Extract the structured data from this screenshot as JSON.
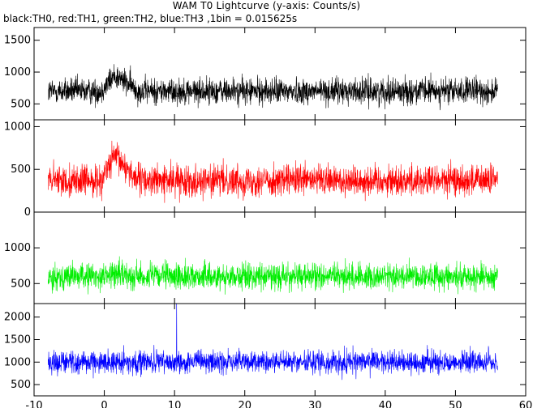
{
  "chart_data": {
    "type": "line",
    "title": "WAM T0 Lightcurve (y-axis: Counts/s)",
    "subtitle": "black:TH0, red:TH1, green:TH2, blue:TH3 ,1bin = 0.015625s",
    "xlim": [
      -10,
      60
    ],
    "x_ticks": [
      -10,
      0,
      10,
      20,
      30,
      40,
      50,
      60
    ],
    "data_range_x": [
      -8,
      56
    ],
    "bin_seconds": 0.015625,
    "panels": [
      {
        "series": "TH0",
        "color": "#000000",
        "ylim": [
          250,
          1700
        ],
        "y_ticks": [
          500,
          1000,
          1500
        ],
        "baseline": 700,
        "noise_amp": 260,
        "burst": {
          "start": -0.5,
          "peak": 1.5,
          "end": 5,
          "extra": 250
        }
      },
      {
        "series": "TH1",
        "color": "#ff0000",
        "ylim": [
          0,
          1080
        ],
        "y_ticks": [
          0,
          500,
          1000
        ],
        "baseline": 370,
        "noise_amp": 230,
        "burst": {
          "start": -0.5,
          "peak": 1.5,
          "end": 5,
          "extra": 280
        }
      },
      {
        "series": "TH2",
        "color": "#00ee00",
        "ylim": [
          220,
          1500
        ],
        "y_ticks": [
          500,
          1000
        ],
        "baseline": 600,
        "noise_amp": 230,
        "burst": {
          "start": -0.5,
          "peak": 1.5,
          "end": 5,
          "extra": 40
        }
      },
      {
        "series": "TH3",
        "color": "#0000ff",
        "ylim": [
          250,
          2300
        ],
        "y_ticks": [
          500,
          1000,
          1500,
          2000
        ],
        "baseline": 1000,
        "noise_amp": 320,
        "burst": {
          "start": -0.5,
          "peak": 1.5,
          "end": 5,
          "extra": 0
        },
        "spike": {
          "x": 10.3,
          "value": 2300
        }
      }
    ]
  }
}
